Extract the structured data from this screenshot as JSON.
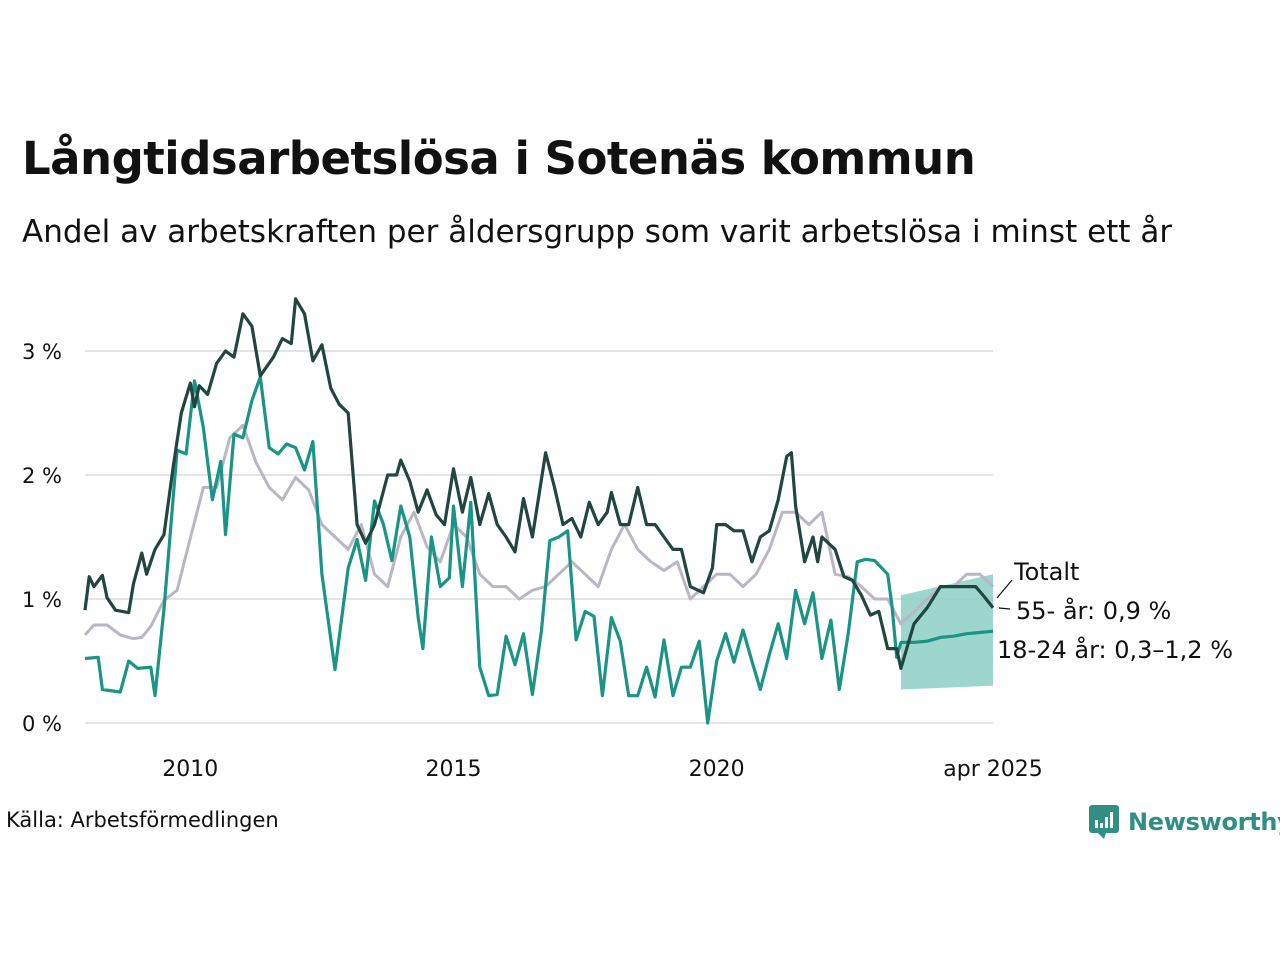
{
  "title": "Långtidsarbetslösa i Sotenäs kommun",
  "subtitle": "Andel av arbetskraften per åldersgrupp som varit arbetslösa i minst ett år",
  "source": "Källa: Arbetsförmedlingen",
  "brand": "Newsworthy",
  "chart_data": {
    "type": "line",
    "title": "Långtidsarbetslösa i Sotenäs kommun",
    "subtitle": "Andel av arbetskraften per åldersgrupp som varit arbetslösa i minst ett år",
    "xlim": [
      2008.0,
      2025.25
    ],
    "ylim": [
      0,
      3.5
    ],
    "y_ticks": [
      0,
      1,
      2,
      3
    ],
    "y_tick_labels": [
      "0 %",
      "1 %",
      "2 %",
      "3 %"
    ],
    "x_ticks": [
      2010,
      2015,
      2020,
      2025.25
    ],
    "x_tick_labels": [
      "2010",
      "2015",
      "2020",
      "apr 2025"
    ],
    "grid": true,
    "legend": "direct labels at line ends",
    "colors": {
      "total": "#bab6c4",
      "age55": "#21453f",
      "age18_24": "#1a9484",
      "band": "#8ccfc3",
      "grid": "#e4e4e4"
    },
    "series": [
      {
        "name": "Totalt",
        "label": "Totalt",
        "values": [
          [
            2008.0,
            0.71
          ],
          [
            2008.17,
            0.79
          ],
          [
            2008.42,
            0.79
          ],
          [
            2008.67,
            0.71
          ],
          [
            2008.92,
            0.68
          ],
          [
            2009.08,
            0.69
          ],
          [
            2009.25,
            0.78
          ],
          [
            2009.5,
            0.99
          ],
          [
            2009.75,
            1.07
          ],
          [
            2010.0,
            1.49
          ],
          [
            2010.25,
            1.9
          ],
          [
            2010.5,
            1.9
          ],
          [
            2010.75,
            2.3
          ],
          [
            2011.0,
            2.4
          ],
          [
            2011.25,
            2.1
          ],
          [
            2011.5,
            1.9
          ],
          [
            2011.75,
            1.8
          ],
          [
            2012.0,
            1.98
          ],
          [
            2012.25,
            1.88
          ],
          [
            2012.5,
            1.6
          ],
          [
            2012.75,
            1.5
          ],
          [
            2013.0,
            1.4
          ],
          [
            2013.25,
            1.6
          ],
          [
            2013.5,
            1.2
          ],
          [
            2013.75,
            1.1
          ],
          [
            2014.0,
            1.5
          ],
          [
            2014.25,
            1.7
          ],
          [
            2014.5,
            1.42
          ],
          [
            2014.75,
            1.3
          ],
          [
            2015.0,
            1.6
          ],
          [
            2015.25,
            1.5
          ],
          [
            2015.5,
            1.2
          ],
          [
            2015.75,
            1.1
          ],
          [
            2016.0,
            1.1
          ],
          [
            2016.25,
            1.0
          ],
          [
            2016.5,
            1.07
          ],
          [
            2016.75,
            1.1
          ],
          [
            2017.0,
            1.2
          ],
          [
            2017.25,
            1.3
          ],
          [
            2017.5,
            1.2
          ],
          [
            2017.75,
            1.1
          ],
          [
            2018.0,
            1.4
          ],
          [
            2018.25,
            1.6
          ],
          [
            2018.5,
            1.4
          ],
          [
            2018.75,
            1.3
          ],
          [
            2019.0,
            1.23
          ],
          [
            2019.25,
            1.3
          ],
          [
            2019.5,
            1.0
          ],
          [
            2019.75,
            1.1
          ],
          [
            2020.0,
            1.2
          ],
          [
            2020.25,
            1.2
          ],
          [
            2020.5,
            1.1
          ],
          [
            2020.75,
            1.2
          ],
          [
            2021.0,
            1.4
          ],
          [
            2021.25,
            1.7
          ],
          [
            2021.5,
            1.7
          ],
          [
            2021.75,
            1.6
          ],
          [
            2022.0,
            1.7
          ],
          [
            2022.25,
            1.2
          ],
          [
            2022.5,
            1.18
          ],
          [
            2022.75,
            1.1
          ],
          [
            2023.0,
            1.0
          ],
          [
            2023.25,
            1.0
          ],
          [
            2023.5,
            0.8
          ],
          [
            2023.75,
            0.9
          ],
          [
            2024.0,
            1.0
          ],
          [
            2024.25,
            1.1
          ],
          [
            2024.5,
            1.1
          ],
          [
            2024.75,
            1.2
          ],
          [
            2025.0,
            1.2
          ],
          [
            2025.25,
            1.1
          ]
        ]
      },
      {
        "name": "55- år",
        "label": "55- år: 0,9 %",
        "values": [
          [
            2008.0,
            0.91
          ],
          [
            2008.08,
            1.18
          ],
          [
            2008.17,
            1.1
          ],
          [
            2008.33,
            1.19
          ],
          [
            2008.42,
            1.01
          ],
          [
            2008.58,
            0.91
          ],
          [
            2008.83,
            0.89
          ],
          [
            2008.92,
            1.12
          ],
          [
            2009.08,
            1.37
          ],
          [
            2009.17,
            1.2
          ],
          [
            2009.33,
            1.4
          ],
          [
            2009.5,
            1.52
          ],
          [
            2009.67,
            2.05
          ],
          [
            2009.83,
            2.5
          ],
          [
            2010.0,
            2.74
          ],
          [
            2010.08,
            2.55
          ],
          [
            2010.17,
            2.72
          ],
          [
            2010.33,
            2.65
          ],
          [
            2010.5,
            2.9
          ],
          [
            2010.67,
            3.0
          ],
          [
            2010.83,
            2.95
          ],
          [
            2011.0,
            3.3
          ],
          [
            2011.17,
            3.2
          ],
          [
            2011.33,
            2.8
          ],
          [
            2011.58,
            2.95
          ],
          [
            2011.75,
            3.1
          ],
          [
            2011.92,
            3.06
          ],
          [
            2012.0,
            3.42
          ],
          [
            2012.17,
            3.3
          ],
          [
            2012.33,
            2.92
          ],
          [
            2012.5,
            3.05
          ],
          [
            2012.67,
            2.7
          ],
          [
            2012.83,
            2.57
          ],
          [
            2013.0,
            2.5
          ],
          [
            2013.17,
            1.6
          ],
          [
            2013.33,
            1.45
          ],
          [
            2013.5,
            1.6
          ],
          [
            2013.75,
            2.0
          ],
          [
            2013.92,
            2.0
          ],
          [
            2014.0,
            2.12
          ],
          [
            2014.17,
            1.95
          ],
          [
            2014.33,
            1.7
          ],
          [
            2014.5,
            1.88
          ],
          [
            2014.67,
            1.68
          ],
          [
            2014.83,
            1.6
          ],
          [
            2015.0,
            2.05
          ],
          [
            2015.17,
            1.7
          ],
          [
            2015.33,
            1.98
          ],
          [
            2015.5,
            1.6
          ],
          [
            2015.67,
            1.85
          ],
          [
            2015.83,
            1.6
          ],
          [
            2016.0,
            1.5
          ],
          [
            2016.17,
            1.38
          ],
          [
            2016.33,
            1.81
          ],
          [
            2016.5,
            1.5
          ],
          [
            2016.75,
            2.18
          ],
          [
            2016.92,
            1.9
          ],
          [
            2017.08,
            1.6
          ],
          [
            2017.25,
            1.65
          ],
          [
            2017.42,
            1.5
          ],
          [
            2017.58,
            1.78
          ],
          [
            2017.75,
            1.6
          ],
          [
            2017.92,
            1.7
          ],
          [
            2018.0,
            1.86
          ],
          [
            2018.17,
            1.6
          ],
          [
            2018.33,
            1.6
          ],
          [
            2018.5,
            1.9
          ],
          [
            2018.67,
            1.6
          ],
          [
            2018.83,
            1.6
          ],
          [
            2019.0,
            1.5
          ],
          [
            2019.17,
            1.4
          ],
          [
            2019.33,
            1.4
          ],
          [
            2019.5,
            1.1
          ],
          [
            2019.75,
            1.05
          ],
          [
            2019.92,
            1.25
          ],
          [
            2020.0,
            1.6
          ],
          [
            2020.17,
            1.6
          ],
          [
            2020.33,
            1.55
          ],
          [
            2020.5,
            1.55
          ],
          [
            2020.67,
            1.3
          ],
          [
            2020.83,
            1.5
          ],
          [
            2021.0,
            1.55
          ],
          [
            2021.17,
            1.8
          ],
          [
            2021.33,
            2.15
          ],
          [
            2021.42,
            2.18
          ],
          [
            2021.5,
            1.75
          ],
          [
            2021.67,
            1.3
          ],
          [
            2021.83,
            1.5
          ],
          [
            2021.92,
            1.3
          ],
          [
            2022.0,
            1.5
          ],
          [
            2022.25,
            1.4
          ],
          [
            2022.42,
            1.18
          ],
          [
            2022.58,
            1.15
          ],
          [
            2022.75,
            1.03
          ],
          [
            2022.92,
            0.87
          ],
          [
            2023.08,
            0.9
          ],
          [
            2023.25,
            0.6
          ],
          [
            2023.42,
            0.6
          ],
          [
            2023.5,
            0.44
          ],
          [
            2023.75,
            0.8
          ],
          [
            2024.0,
            0.93
          ],
          [
            2024.25,
            1.1
          ],
          [
            2024.5,
            1.1
          ],
          [
            2024.75,
            1.1
          ],
          [
            2024.92,
            1.1
          ],
          [
            2025.08,
            1.02
          ],
          [
            2025.25,
            0.93
          ]
        ]
      },
      {
        "name": "18-24 år",
        "label": "18-24 år: 0,3–1,2 %",
        "values": [
          [
            2008.0,
            0.52
          ],
          [
            2008.25,
            0.53
          ],
          [
            2008.33,
            0.27
          ],
          [
            2008.67,
            0.25
          ],
          [
            2008.83,
            0.5
          ],
          [
            2009.0,
            0.44
          ],
          [
            2009.25,
            0.45
          ],
          [
            2009.33,
            0.22
          ],
          [
            2009.5,
            0.92
          ],
          [
            2009.75,
            2.2
          ],
          [
            2009.92,
            2.17
          ],
          [
            2010.08,
            2.76
          ],
          [
            2010.25,
            2.38
          ],
          [
            2010.42,
            1.8
          ],
          [
            2010.58,
            2.11
          ],
          [
            2010.67,
            1.52
          ],
          [
            2010.83,
            2.33
          ],
          [
            2011.0,
            2.3
          ],
          [
            2011.17,
            2.6
          ],
          [
            2011.33,
            2.79
          ],
          [
            2011.5,
            2.22
          ],
          [
            2011.67,
            2.17
          ],
          [
            2011.83,
            2.25
          ],
          [
            2012.0,
            2.22
          ],
          [
            2012.17,
            2.04
          ],
          [
            2012.33,
            2.27
          ],
          [
            2012.5,
            1.2
          ],
          [
            2012.75,
            0.43
          ],
          [
            2013.0,
            1.25
          ],
          [
            2013.17,
            1.48
          ],
          [
            2013.33,
            1.15
          ],
          [
            2013.5,
            1.79
          ],
          [
            2013.67,
            1.6
          ],
          [
            2013.83,
            1.31
          ],
          [
            2014.0,
            1.75
          ],
          [
            2014.17,
            1.5
          ],
          [
            2014.33,
            0.85
          ],
          [
            2014.42,
            0.6
          ],
          [
            2014.58,
            1.5
          ],
          [
            2014.75,
            1.1
          ],
          [
            2014.92,
            1.17
          ],
          [
            2015.0,
            1.75
          ],
          [
            2015.17,
            1.1
          ],
          [
            2015.33,
            1.78
          ],
          [
            2015.5,
            0.45
          ],
          [
            2015.67,
            0.22
          ],
          [
            2015.83,
            0.23
          ],
          [
            2016.0,
            0.7
          ],
          [
            2016.17,
            0.47
          ],
          [
            2016.33,
            0.72
          ],
          [
            2016.5,
            0.23
          ],
          [
            2016.67,
            0.74
          ],
          [
            2016.83,
            1.47
          ],
          [
            2017.0,
            1.5
          ],
          [
            2017.17,
            1.55
          ],
          [
            2017.33,
            0.67
          ],
          [
            2017.5,
            0.9
          ],
          [
            2017.67,
            0.86
          ],
          [
            2017.83,
            0.22
          ],
          [
            2018.0,
            0.85
          ],
          [
            2018.17,
            0.66
          ],
          [
            2018.33,
            0.22
          ],
          [
            2018.5,
            0.22
          ],
          [
            2018.67,
            0.45
          ],
          [
            2018.83,
            0.21
          ],
          [
            2019.0,
            0.67
          ],
          [
            2019.17,
            0.22
          ],
          [
            2019.33,
            0.45
          ],
          [
            2019.5,
            0.45
          ],
          [
            2019.67,
            0.66
          ],
          [
            2019.83,
            0.0
          ],
          [
            2020.0,
            0.5
          ],
          [
            2020.17,
            0.72
          ],
          [
            2020.33,
            0.49
          ],
          [
            2020.5,
            0.75
          ],
          [
            2020.67,
            0.5
          ],
          [
            2020.83,
            0.27
          ],
          [
            2021.0,
            0.55
          ],
          [
            2021.17,
            0.8
          ],
          [
            2021.33,
            0.52
          ],
          [
            2021.5,
            1.07
          ],
          [
            2021.67,
            0.8
          ],
          [
            2021.83,
            1.05
          ],
          [
            2022.0,
            0.52
          ],
          [
            2022.17,
            0.83
          ],
          [
            2022.33,
            0.27
          ],
          [
            2022.5,
            0.72
          ],
          [
            2022.67,
            1.3
          ],
          [
            2022.83,
            1.32
          ],
          [
            2023.0,
            1.31
          ],
          [
            2023.25,
            1.2
          ],
          [
            2023.33,
            0.95
          ],
          [
            2023.42,
            0.53
          ],
          [
            2023.5,
            0.65
          ],
          [
            2023.75,
            0.65
          ],
          [
            2024.0,
            0.66
          ],
          [
            2024.25,
            0.69
          ],
          [
            2024.5,
            0.7
          ],
          [
            2024.75,
            0.72
          ],
          [
            2025.0,
            0.73
          ],
          [
            2025.25,
            0.74
          ]
        ]
      }
    ],
    "band": {
      "name": "18-24 år",
      "x": [
        2023.5,
        2025.25
      ],
      "upper": [
        1.03,
        1.2
      ],
      "lower": [
        0.27,
        0.3
      ]
    }
  }
}
